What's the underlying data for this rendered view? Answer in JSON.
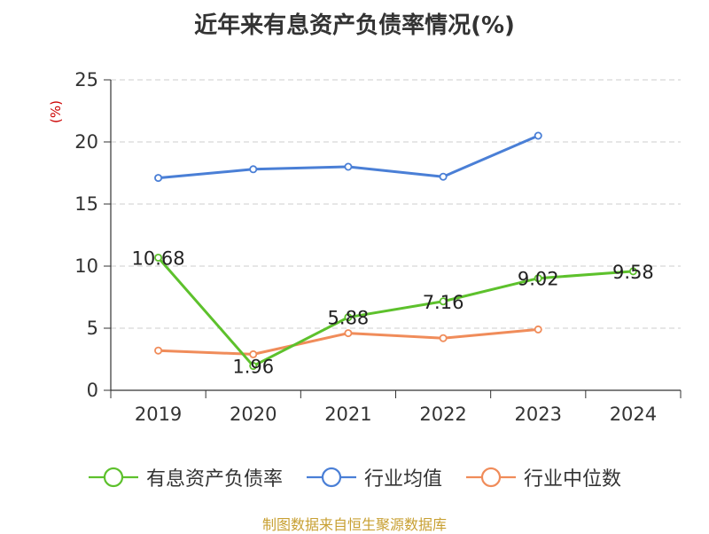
{
  "chart_data": {
    "type": "line",
    "title": "近年来有息资产负债率情况(%)",
    "ylabel": "(%)",
    "xlabel": "",
    "categories": [
      "2019",
      "2020",
      "2021",
      "2022",
      "2023",
      "2024"
    ],
    "ylim": [
      0,
      25
    ],
    "yticks": [
      0,
      5,
      10,
      15,
      20,
      25
    ],
    "grid": true,
    "legend_position": "bottom",
    "series": [
      {
        "name": "有息资产负债率",
        "color": "#5dc12c",
        "values": [
          10.68,
          1.96,
          5.88,
          7.16,
          9.02,
          9.58
        ],
        "labels": [
          "10.68",
          "1.96",
          "5.88",
          "7.16",
          "9.02",
          "9.58"
        ]
      },
      {
        "name": "行业均值",
        "color": "#4a7fd6",
        "values": [
          17.1,
          17.8,
          18.0,
          17.2,
          20.5,
          null
        ]
      },
      {
        "name": "行业中位数",
        "color": "#f08c5a",
        "values": [
          3.2,
          2.9,
          4.6,
          4.2,
          4.9,
          null
        ]
      }
    ]
  },
  "source_note": "制图数据来自恒生聚源数据库"
}
